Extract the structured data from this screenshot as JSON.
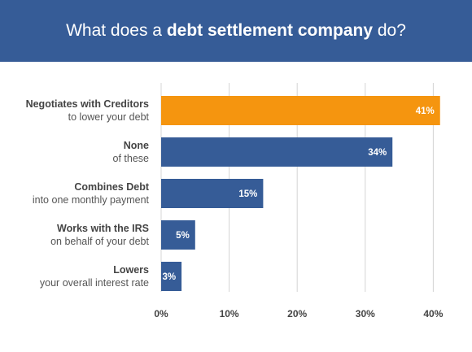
{
  "header": {
    "title_pre": "What does a ",
    "title_bold": "debt settlement company",
    "title_post": " do?"
  },
  "colors": {
    "header_bg": "#365c97",
    "bar_default": "#365c97",
    "bar_highlight": "#f5950f"
  },
  "chart_data": {
    "type": "bar",
    "orientation": "horizontal",
    "title": "What does a debt settlement company do?",
    "categories": [
      {
        "bold": "Negotiates with Creditors",
        "sub": "to lower your debt"
      },
      {
        "bold": "None",
        "sub": "of these"
      },
      {
        "bold": "Combines Debt",
        "sub": "into one monthly payment"
      },
      {
        "bold": "Works with the IRS",
        "sub": "on behalf of your debt"
      },
      {
        "bold": "Lowers",
        "sub": "your overall interest rate"
      }
    ],
    "values": [
      41,
      34,
      15,
      5,
      3
    ],
    "value_labels": [
      "41%",
      "34%",
      "15%",
      "5%",
      "3%"
    ],
    "highlight_index": 0,
    "xlim": [
      0,
      42
    ],
    "xticks": [
      0,
      10,
      20,
      30,
      40
    ],
    "xtick_labels": [
      "0%",
      "10%",
      "20%",
      "30%",
      "40%"
    ],
    "grid": true
  }
}
